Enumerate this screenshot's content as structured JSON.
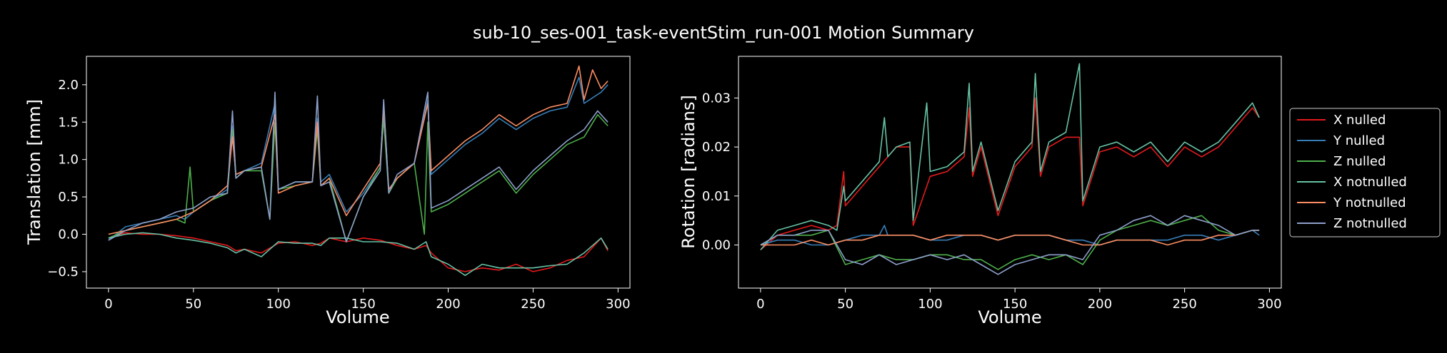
{
  "figure": {
    "title": "sub-10_ses-001_task-eventStim_run-001 Motion Summary",
    "background": "#000000"
  },
  "legend": {
    "entries": [
      {
        "label": "X nulled",
        "color": "#e41a1c"
      },
      {
        "label": "Y nulled",
        "color": "#377eb8"
      },
      {
        "label": "Z nulled",
        "color": "#4daf4a"
      },
      {
        "label": "X notnulled",
        "color": "#66c2a5"
      },
      {
        "label": "Y notnulled",
        "color": "#fc8d62"
      },
      {
        "label": "Z notnulled",
        "color": "#8da0cb"
      }
    ]
  },
  "chart_data": [
    {
      "type": "line",
      "xlabel": "Volume",
      "ylabel": "Translation [mm]",
      "xlim": [
        -13,
        307
      ],
      "ylim": [
        -0.72,
        2.38
      ],
      "xticks": [
        0,
        50,
        100,
        150,
        200,
        250,
        300
      ],
      "xtick_labels": [
        "0",
        "50",
        "100",
        "150",
        "200",
        "250",
        "300"
      ],
      "yticks": [
        -0.5,
        0.0,
        0.5,
        1.0,
        1.5,
        2.0
      ],
      "ytick_labels": [
        "−0.5",
        "0.0",
        "0.5",
        "1.0",
        "1.5",
        "2.0"
      ],
      "series": [
        {
          "name": "X nulled",
          "color": "#e41a1c",
          "x": [
            0,
            10,
            20,
            30,
            40,
            50,
            60,
            70,
            75,
            80,
            90,
            100,
            110,
            120,
            125,
            130,
            140,
            150,
            160,
            170,
            180,
            187,
            190,
            200,
            210,
            220,
            230,
            240,
            250,
            260,
            270,
            280,
            290,
            294
          ],
          "y": [
            -0.05,
            0.02,
            0.0,
            0.0,
            -0.02,
            -0.05,
            -0.1,
            -0.15,
            -0.22,
            -0.2,
            -0.25,
            -0.12,
            -0.1,
            -0.15,
            -0.12,
            -0.05,
            -0.1,
            -0.05,
            -0.08,
            -0.15,
            -0.2,
            -0.15,
            -0.25,
            -0.45,
            -0.5,
            -0.45,
            -0.48,
            -0.4,
            -0.5,
            -0.45,
            -0.35,
            -0.3,
            -0.05,
            -0.22
          ]
        },
        {
          "name": "Y nulled",
          "color": "#377eb8",
          "x": [
            0,
            10,
            20,
            30,
            40,
            45,
            50,
            60,
            70,
            73,
            75,
            80,
            90,
            98,
            100,
            110,
            120,
            123,
            125,
            130,
            140,
            150,
            160,
            162,
            165,
            170,
            180,
            188,
            190,
            200,
            210,
            220,
            230,
            240,
            250,
            260,
            270,
            277,
            280,
            290,
            294
          ],
          "y": [
            -0.08,
            0.1,
            0.15,
            0.2,
            0.25,
            0.2,
            0.3,
            0.45,
            0.6,
            1.45,
            0.8,
            0.85,
            0.95,
            1.75,
            0.6,
            0.7,
            0.7,
            1.55,
            0.7,
            0.8,
            0.3,
            0.55,
            0.9,
            1.75,
            0.6,
            0.75,
            0.95,
            1.8,
            0.8,
            1.0,
            1.2,
            1.35,
            1.55,
            1.4,
            1.55,
            1.65,
            1.7,
            2.1,
            1.75,
            1.9,
            2.0
          ]
        },
        {
          "name": "Z nulled",
          "color": "#4daf4a",
          "x": [
            0,
            10,
            20,
            30,
            40,
            45,
            48,
            50,
            60,
            70,
            73,
            75,
            80,
            90,
            95,
            98,
            100,
            110,
            120,
            123,
            125,
            130,
            140,
            150,
            160,
            162,
            165,
            170,
            180,
            186,
            188,
            190,
            200,
            210,
            220,
            230,
            240,
            250,
            260,
            270,
            280,
            288,
            290,
            294
          ],
          "y": [
            -0.05,
            0.05,
            0.1,
            0.15,
            0.2,
            0.15,
            0.9,
            0.3,
            0.45,
            0.55,
            1.4,
            0.75,
            0.85,
            0.85,
            0.2,
            1.5,
            0.6,
            0.65,
            0.7,
            1.4,
            0.65,
            0.75,
            -0.1,
            0.5,
            0.9,
            1.55,
            0.55,
            0.75,
            0.95,
            0.0,
            1.5,
            0.3,
            0.4,
            0.55,
            0.7,
            0.85,
            0.55,
            0.8,
            1.0,
            1.2,
            1.3,
            1.6,
            1.55,
            1.45
          ]
        },
        {
          "name": "X notnulled",
          "color": "#66c2a5",
          "x": [
            0,
            10,
            20,
            30,
            40,
            50,
            60,
            70,
            75,
            80,
            90,
            100,
            110,
            120,
            125,
            130,
            140,
            150,
            160,
            170,
            180,
            187,
            190,
            200,
            210,
            220,
            230,
            240,
            250,
            260,
            270,
            280,
            290,
            294
          ],
          "y": [
            -0.05,
            0.0,
            0.02,
            0.0,
            -0.05,
            -0.08,
            -0.12,
            -0.18,
            -0.25,
            -0.2,
            -0.3,
            -0.1,
            -0.12,
            -0.12,
            -0.15,
            -0.05,
            -0.05,
            -0.1,
            -0.1,
            -0.12,
            -0.2,
            -0.1,
            -0.3,
            -0.4,
            -0.55,
            -0.4,
            -0.45,
            -0.45,
            -0.45,
            -0.42,
            -0.4,
            -0.25,
            -0.05,
            -0.2
          ]
        },
        {
          "name": "Y notnulled",
          "color": "#fc8d62",
          "x": [
            0,
            10,
            20,
            30,
            40,
            50,
            60,
            70,
            73,
            75,
            80,
            90,
            98,
            100,
            110,
            120,
            123,
            125,
            130,
            140,
            150,
            160,
            162,
            165,
            170,
            180,
            188,
            190,
            200,
            210,
            220,
            230,
            240,
            250,
            260,
            270,
            277,
            280,
            285,
            290,
            294
          ],
          "y": [
            0.0,
            0.05,
            0.1,
            0.15,
            0.2,
            0.3,
            0.45,
            0.65,
            1.3,
            0.8,
            0.85,
            0.9,
            1.6,
            0.55,
            0.65,
            0.7,
            1.5,
            0.65,
            0.75,
            0.25,
            0.6,
            0.95,
            1.7,
            0.6,
            0.75,
            0.95,
            1.75,
            0.85,
            1.05,
            1.25,
            1.4,
            1.6,
            1.45,
            1.6,
            1.7,
            1.75,
            2.25,
            1.8,
            2.2,
            1.95,
            2.05
          ]
        },
        {
          "name": "Z notnulled",
          "color": "#8da0cb",
          "x": [
            0,
            10,
            20,
            30,
            40,
            50,
            60,
            70,
            73,
            75,
            80,
            90,
            95,
            98,
            100,
            110,
            120,
            123,
            125,
            130,
            140,
            150,
            160,
            162,
            165,
            170,
            180,
            188,
            190,
            200,
            210,
            220,
            230,
            240,
            250,
            260,
            270,
            280,
            288,
            290,
            294
          ],
          "y": [
            -0.08,
            0.05,
            0.15,
            0.2,
            0.3,
            0.35,
            0.5,
            0.55,
            1.65,
            0.75,
            0.85,
            0.9,
            0.2,
            1.9,
            0.6,
            0.7,
            0.7,
            1.85,
            0.65,
            0.7,
            -0.1,
            0.5,
            0.85,
            1.8,
            0.55,
            0.8,
            0.95,
            1.9,
            0.35,
            0.45,
            0.6,
            0.75,
            0.9,
            0.6,
            0.85,
            1.05,
            1.25,
            1.4,
            1.65,
            1.6,
            1.5
          ]
        }
      ]
    },
    {
      "type": "line",
      "xlabel": "Volume",
      "ylabel": "Rotation [radians]",
      "xlim": [
        -13,
        307
      ],
      "ylim": [
        -0.0088,
        0.0385
      ],
      "xticks": [
        0,
        50,
        100,
        150,
        200,
        250,
        300
      ],
      "xtick_labels": [
        "0",
        "50",
        "100",
        "150",
        "200",
        "250",
        "300"
      ],
      "yticks": [
        0.0,
        0.01,
        0.02,
        0.03
      ],
      "ytick_labels": [
        "0.00",
        "0.01",
        "0.02",
        "0.03"
      ],
      "series": [
        {
          "name": "X nulled",
          "color": "#e41a1c",
          "x": [
            0,
            10,
            20,
            30,
            40,
            45,
            49,
            50,
            60,
            70,
            75,
            80,
            88,
            90,
            100,
            110,
            120,
            123,
            125,
            130,
            140,
            150,
            160,
            162,
            165,
            170,
            180,
            188,
            190,
            200,
            210,
            220,
            230,
            240,
            250,
            260,
            270,
            280,
            290,
            294
          ],
          "y": [
            -0.001,
            0.002,
            0.003,
            0.004,
            0.003,
            0.004,
            0.015,
            0.008,
            0.012,
            0.016,
            0.018,
            0.02,
            0.02,
            0.004,
            0.014,
            0.015,
            0.018,
            0.028,
            0.014,
            0.02,
            0.006,
            0.016,
            0.02,
            0.03,
            0.014,
            0.02,
            0.022,
            0.022,
            0.008,
            0.019,
            0.02,
            0.018,
            0.02,
            0.016,
            0.02,
            0.018,
            0.02,
            0.024,
            0.028,
            0.026
          ]
        },
        {
          "name": "Y nulled",
          "color": "#377eb8",
          "x": [
            0,
            10,
            20,
            30,
            40,
            50,
            60,
            70,
            73,
            75,
            80,
            90,
            100,
            110,
            120,
            130,
            140,
            150,
            160,
            170,
            180,
            190,
            200,
            210,
            220,
            230,
            240,
            250,
            260,
            270,
            280,
            290,
            294
          ],
          "y": [
            0.0,
            0.001,
            0.001,
            0.0,
            0.0,
            0.001,
            0.002,
            0.002,
            0.004,
            0.002,
            0.002,
            0.002,
            0.001,
            0.001,
            0.002,
            0.002,
            0.001,
            0.002,
            0.002,
            0.002,
            0.001,
            0.001,
            0.0,
            0.001,
            0.001,
            0.001,
            0.001,
            0.002,
            0.002,
            0.001,
            0.002,
            0.003,
            0.002
          ]
        },
        {
          "name": "Z nulled",
          "color": "#4daf4a",
          "x": [
            0,
            10,
            20,
            30,
            40,
            50,
            60,
            70,
            80,
            90,
            100,
            110,
            120,
            130,
            140,
            150,
            160,
            170,
            180,
            190,
            200,
            210,
            220,
            230,
            240,
            250,
            260,
            270,
            280,
            290,
            294
          ],
          "y": [
            0.0,
            0.002,
            0.002,
            0.002,
            0.003,
            -0.004,
            -0.003,
            -0.002,
            -0.003,
            -0.003,
            -0.002,
            -0.002,
            -0.003,
            -0.003,
            -0.005,
            -0.003,
            -0.002,
            -0.003,
            -0.002,
            -0.004,
            0.001,
            0.003,
            0.004,
            0.005,
            0.004,
            0.005,
            0.006,
            0.003,
            0.002,
            0.003,
            0.003
          ]
        },
        {
          "name": "X notnulled",
          "color": "#66c2a5",
          "x": [
            0,
            10,
            20,
            30,
            40,
            45,
            49,
            50,
            60,
            70,
            73,
            75,
            80,
            88,
            90,
            98,
            100,
            110,
            120,
            123,
            125,
            130,
            140,
            150,
            160,
            162,
            165,
            170,
            180,
            188,
            190,
            200,
            210,
            220,
            230,
            240,
            250,
            260,
            270,
            280,
            290,
            294
          ],
          "y": [
            -0.001,
            0.003,
            0.004,
            0.005,
            0.004,
            0.003,
            0.012,
            0.009,
            0.013,
            0.017,
            0.026,
            0.018,
            0.02,
            0.021,
            0.005,
            0.029,
            0.015,
            0.016,
            0.019,
            0.033,
            0.015,
            0.021,
            0.007,
            0.017,
            0.021,
            0.035,
            0.015,
            0.021,
            0.023,
            0.037,
            0.009,
            0.02,
            0.021,
            0.019,
            0.021,
            0.017,
            0.021,
            0.019,
            0.021,
            0.025,
            0.029,
            0.026
          ]
        },
        {
          "name": "Y notnulled",
          "color": "#fc8d62",
          "x": [
            0,
            10,
            20,
            30,
            40,
            50,
            60,
            70,
            80,
            90,
            100,
            110,
            120,
            130,
            140,
            150,
            160,
            170,
            180,
            190,
            200,
            210,
            220,
            230,
            240,
            250,
            260,
            270,
            280,
            290,
            294
          ],
          "y": [
            0.0,
            0.0,
            0.0,
            0.001,
            0.0,
            0.001,
            0.001,
            0.002,
            0.002,
            0.002,
            0.001,
            0.002,
            0.002,
            0.002,
            0.001,
            0.002,
            0.002,
            0.002,
            0.001,
            0.0,
            0.0,
            0.001,
            0.001,
            0.001,
            0.0,
            0.001,
            0.001,
            0.002,
            0.002,
            0.003,
            0.003
          ]
        },
        {
          "name": "Z notnulled",
          "color": "#8da0cb",
          "x": [
            0,
            10,
            20,
            30,
            40,
            50,
            60,
            70,
            80,
            90,
            100,
            110,
            120,
            130,
            140,
            150,
            160,
            170,
            180,
            190,
            200,
            210,
            220,
            230,
            240,
            250,
            260,
            270,
            280,
            290,
            294
          ],
          "y": [
            0.0,
            0.002,
            0.002,
            0.003,
            0.003,
            -0.003,
            -0.004,
            -0.002,
            -0.004,
            -0.003,
            -0.002,
            -0.003,
            -0.002,
            -0.004,
            -0.006,
            -0.004,
            -0.003,
            -0.002,
            -0.002,
            -0.003,
            0.002,
            0.003,
            0.005,
            0.006,
            0.004,
            0.006,
            0.005,
            0.004,
            0.002,
            0.003,
            0.003
          ]
        }
      ]
    }
  ]
}
